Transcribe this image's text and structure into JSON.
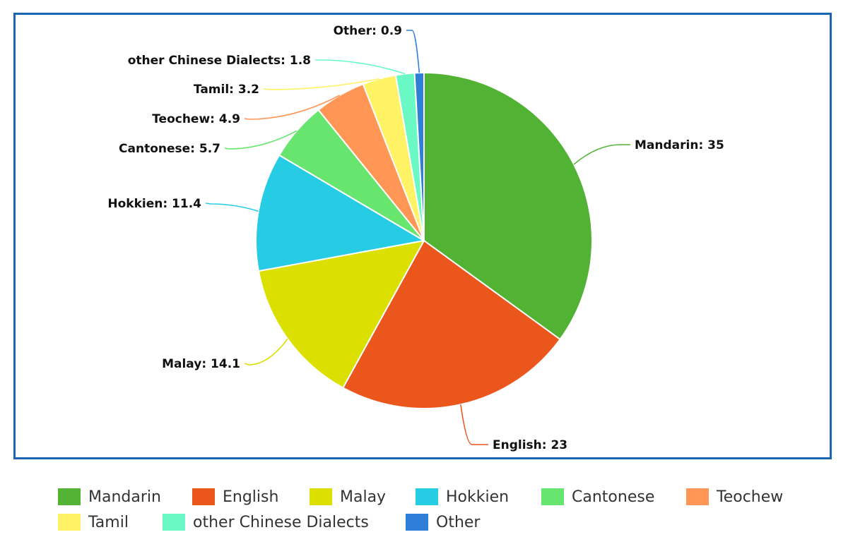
{
  "chart_data": {
    "type": "pie",
    "title": "",
    "categories": [
      "Mandarin",
      "English",
      "Malay",
      "Hokkien",
      "Cantonese",
      "Teochew",
      "Tamil",
      "other Chinese Dialects",
      "Other"
    ],
    "values": [
      35,
      23,
      14.1,
      11.4,
      5.7,
      4.9,
      3.2,
      1.8,
      0.9
    ],
    "colors": [
      "#52b233",
      "#eb561c",
      "#dbe000",
      "#26cbe4",
      "#67e56f",
      "#ff9655",
      "#fff264",
      "#6af9c4",
      "#2f7ed8"
    ],
    "data_labels": [
      "Mandarin: 35",
      "English: 23",
      "Malay: 14.1",
      "Hokkien: 11.4",
      "Cantonese: 5.7",
      "Teochew: 4.9",
      "Tamil: 3.2",
      "other Chinese Dialects: 1.8",
      "Other: 0.9"
    ],
    "legend_position": "bottom",
    "start_angle": "top, clockwise"
  },
  "frame_color": "#1a64b0"
}
